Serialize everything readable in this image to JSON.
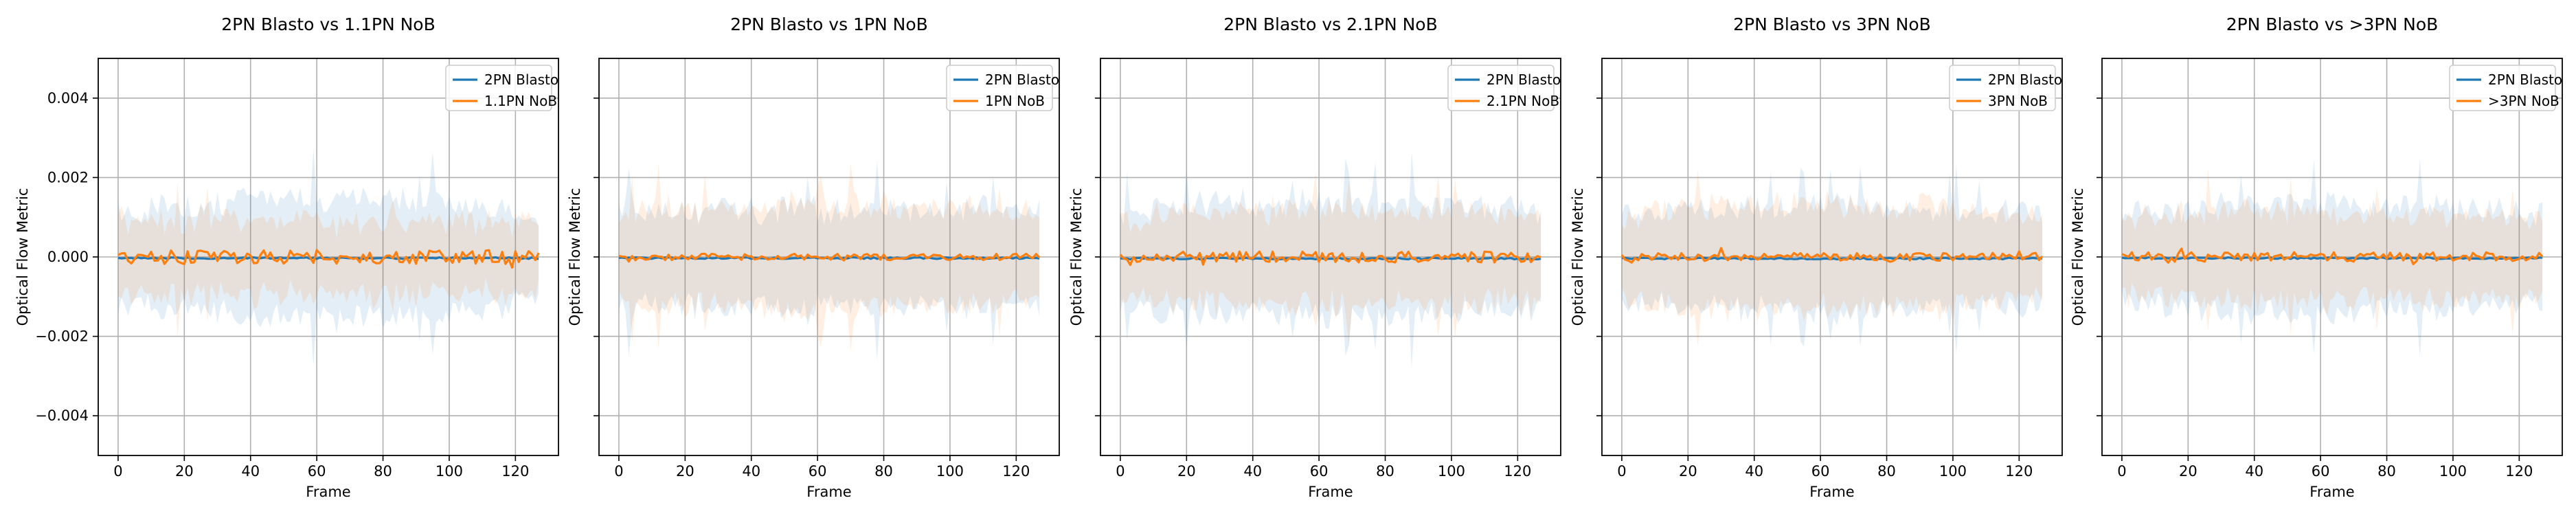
{
  "figure": {
    "colors": {
      "series1": "#1f77b4",
      "series2": "#ff7f0e",
      "grid": "#b0b0b0",
      "axis": "#000000"
    }
  },
  "chart_data": [
    {
      "type": "line",
      "title": "2PN Blasto vs 1.1PN NoB",
      "xlabel": "Frame",
      "ylabel": "Optical Flow Metric",
      "xlim": [
        -6,
        133
      ],
      "ylim": [
        -0.005,
        0.005
      ],
      "xticks": [
        "0",
        "20",
        "40",
        "60",
        "80",
        "100",
        "120"
      ],
      "yticks": [
        "−0.004",
        "−0.002",
        "0.000",
        "0.002",
        "0.004"
      ],
      "grid": true,
      "legend": "top-right",
      "series": [
        {
          "name": "2PN Blasto",
          "color": "#1f77b4",
          "mean_level": -3e-05,
          "noise": 2e-05,
          "band": 0.0011,
          "band_trend": 0.0004
        },
        {
          "name": "1.1PN NoB",
          "color": "#ff7f0e",
          "mean_level": 0.0,
          "noise": 0.00018,
          "band": 0.0009,
          "band_trend": 0.0
        }
      ]
    },
    {
      "type": "line",
      "title": "2PN Blasto vs 1PN NoB",
      "xlabel": "Frame",
      "ylabel": "Optical Flow Metric",
      "xlim": [
        -6,
        133
      ],
      "ylim": [
        -0.005,
        0.005
      ],
      "xticks": [
        "0",
        "20",
        "40",
        "60",
        "80",
        "100",
        "120"
      ],
      "yticks": [],
      "grid": true,
      "legend": "top-right",
      "series": [
        {
          "name": "2PN Blasto",
          "color": "#1f77b4",
          "mean_level": -3e-05,
          "noise": 2e-05,
          "band": 0.0012,
          "band_trend": 0.0
        },
        {
          "name": "1PN NoB",
          "color": "#ff7f0e",
          "mean_level": 0.0,
          "noise": 8e-05,
          "band": 0.0011,
          "band_trend": 0.0002
        }
      ]
    },
    {
      "type": "line",
      "title": "2PN Blasto vs 2.1PN NoB",
      "xlabel": "Frame",
      "ylabel": "Optical Flow Metric",
      "xlim": [
        -6,
        133
      ],
      "ylim": [
        -0.005,
        0.005
      ],
      "xticks": [
        "0",
        "20",
        "40",
        "60",
        "80",
        "100",
        "120"
      ],
      "yticks": [],
      "grid": true,
      "legend": "top-right",
      "series": [
        {
          "name": "2PN Blasto",
          "color": "#1f77b4",
          "mean_level": -4e-05,
          "noise": 2e-05,
          "band": 0.0012,
          "band_trend": 0.0002
        },
        {
          "name": "2.1PN NoB",
          "color": "#ff7f0e",
          "mean_level": 0.0,
          "noise": 0.00014,
          "band": 0.001,
          "band_trend": 0.0002
        }
      ]
    },
    {
      "type": "line",
      "title": "2PN Blasto vs 3PN NoB",
      "xlabel": "Frame",
      "ylabel": "Optical Flow Metric",
      "xlim": [
        -6,
        133
      ],
      "ylim": [
        -0.005,
        0.005
      ],
      "xticks": [
        "0",
        "20",
        "40",
        "60",
        "80",
        "100",
        "120"
      ],
      "yticks": [],
      "grid": true,
      "legend": "top-right",
      "series": [
        {
          "name": "2PN Blasto",
          "color": "#1f77b4",
          "mean_level": -4e-05,
          "noise": 2e-05,
          "band": 0.0011,
          "band_trend": 0.0002
        },
        {
          "name": "3PN NoB",
          "color": "#ff7f0e",
          "mean_level": 0.0,
          "noise": 0.0001,
          "band": 0.0011,
          "band_trend": 0.0002
        }
      ]
    },
    {
      "type": "line",
      "title": "2PN Blasto vs >3PN NoB",
      "xlabel": "Frame",
      "ylabel": "Optical Flow Metric",
      "xlim": [
        -6,
        133
      ],
      "ylim": [
        -0.005,
        0.005
      ],
      "xticks": [
        "0",
        "20",
        "40",
        "60",
        "80",
        "100",
        "120"
      ],
      "yticks": [],
      "grid": true,
      "legend": "top-right",
      "series": [
        {
          "name": "2PN Blasto",
          "color": "#1f77b4",
          "mean_level": -3e-05,
          "noise": 2e-05,
          "band": 0.0011,
          "band_trend": 0.0003
        },
        {
          "name": ">3PN NoB",
          "color": "#ff7f0e",
          "mean_level": 0.0,
          "noise": 0.00012,
          "band": 0.001,
          "band_trend": 0.0001
        }
      ]
    }
  ]
}
